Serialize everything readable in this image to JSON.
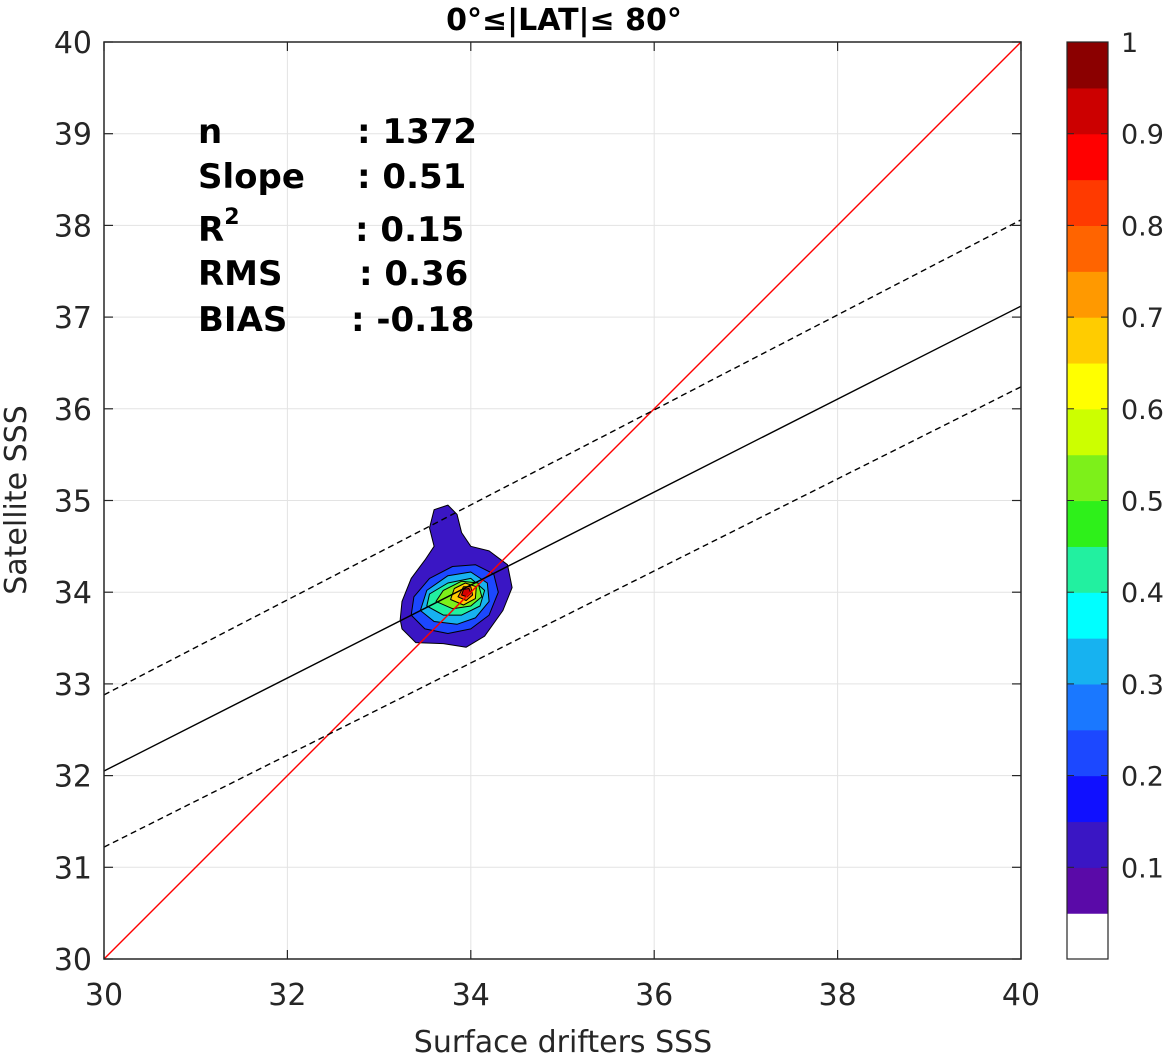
{
  "chart_data": {
    "type": "scatter",
    "subtype": "filled-contour-density",
    "title": "0°≤|LAT|≤ 80°",
    "xlabel": "Surface drifters SSS",
    "ylabel": "Satellite SSS",
    "xlim": [
      30,
      40
    ],
    "ylim": [
      30,
      40
    ],
    "xticks": [
      "30",
      "32",
      "34",
      "36",
      "38",
      "40"
    ],
    "yticks": [
      "30",
      "31",
      "32",
      "33",
      "34",
      "35",
      "36",
      "37",
      "38",
      "39",
      "40"
    ],
    "grid": true,
    "stats": [
      {
        "label": "n",
        "sep": ":",
        "value": "1372"
      },
      {
        "label": "Slope",
        "sep": ":",
        "value": "0.51"
      },
      {
        "label": "R",
        "sup": "2",
        "sep": ":",
        "value": "0.15"
      },
      {
        "label": "RMS",
        "sep": ":",
        "value": "0.36"
      },
      {
        "label": "BIAS",
        "sep": ":",
        "value": "-0.18"
      }
    ],
    "lines": [
      {
        "style": "solid",
        "color": "#ff0000",
        "points": [
          [
            30,
            30
          ],
          [
            40,
            40
          ]
        ]
      },
      {
        "style": "solid",
        "color": "#000000",
        "points": [
          [
            30,
            32.05
          ],
          [
            40,
            37.12
          ]
        ]
      },
      {
        "style": "dashed",
        "color": "#000000",
        "points": [
          [
            30,
            32.88
          ],
          [
            40,
            38.06
          ]
        ]
      },
      {
        "style": "dashed",
        "color": "#000000",
        "points": [
          [
            30,
            31.22
          ],
          [
            40,
            36.24
          ]
        ]
      }
    ],
    "density_peak": {
      "x": 33.95,
      "y": 34.0,
      "value": 1.0
    },
    "contours": [
      {
        "level": 0.05,
        "color": "#3a16c4",
        "points": [
          [
            33.25,
            33.6
          ],
          [
            33.4,
            33.45
          ],
          [
            33.7,
            33.44
          ],
          [
            33.95,
            33.4
          ],
          [
            34.15,
            33.52
          ],
          [
            34.35,
            33.8
          ],
          [
            34.45,
            34.05
          ],
          [
            34.4,
            34.3
          ],
          [
            34.2,
            34.45
          ],
          [
            34.0,
            34.5
          ],
          [
            33.9,
            34.65
          ],
          [
            33.85,
            34.85
          ],
          [
            33.75,
            34.95
          ],
          [
            33.6,
            34.9
          ],
          [
            33.55,
            34.7
          ],
          [
            33.6,
            34.5
          ],
          [
            33.5,
            34.35
          ],
          [
            33.35,
            34.15
          ],
          [
            33.25,
            33.9
          ],
          [
            33.23,
            33.7
          ]
        ]
      },
      {
        "level": 0.2,
        "color": "#1c48ff",
        "points": [
          [
            33.35,
            33.75
          ],
          [
            33.5,
            33.6
          ],
          [
            33.75,
            33.55
          ],
          [
            34.0,
            33.6
          ],
          [
            34.2,
            33.75
          ],
          [
            34.3,
            34.0
          ],
          [
            34.25,
            34.2
          ],
          [
            34.05,
            34.3
          ],
          [
            33.8,
            34.28
          ],
          [
            33.55,
            34.15
          ],
          [
            33.38,
            33.95
          ]
        ]
      },
      {
        "level": 0.3,
        "color": "#17b2f0",
        "points": [
          [
            33.45,
            33.8
          ],
          [
            33.6,
            33.68
          ],
          [
            33.85,
            33.65
          ],
          [
            34.05,
            33.72
          ],
          [
            34.2,
            33.9
          ],
          [
            34.18,
            34.1
          ],
          [
            34.0,
            34.22
          ],
          [
            33.75,
            34.18
          ],
          [
            33.52,
            34.02
          ]
        ]
      },
      {
        "level": 0.4,
        "color": "#22f0a0",
        "points": [
          [
            33.52,
            33.85
          ],
          [
            33.7,
            33.75
          ],
          [
            33.9,
            33.75
          ],
          [
            34.1,
            33.85
          ],
          [
            34.15,
            34.02
          ],
          [
            34.0,
            34.15
          ],
          [
            33.75,
            34.1
          ],
          [
            33.55,
            33.98
          ]
        ]
      },
      {
        "level": 0.5,
        "color": "#7df01a",
        "points": [
          [
            33.62,
            33.9
          ],
          [
            33.8,
            33.82
          ],
          [
            34.0,
            33.85
          ],
          [
            34.12,
            33.95
          ],
          [
            34.08,
            34.1
          ],
          [
            33.9,
            34.12
          ],
          [
            33.7,
            34.02
          ]
        ]
      },
      {
        "level": 0.7,
        "color": "#ffcc00",
        "points": [
          [
            33.78,
            33.92
          ],
          [
            33.92,
            33.86
          ],
          [
            34.05,
            33.93
          ],
          [
            34.06,
            34.06
          ],
          [
            33.94,
            34.1
          ],
          [
            33.82,
            34.04
          ]
        ]
      },
      {
        "level": 0.8,
        "color": "#ff5a00",
        "points": [
          [
            33.86,
            33.95
          ],
          [
            33.95,
            33.91
          ],
          [
            34.02,
            33.97
          ],
          [
            34.0,
            34.06
          ],
          [
            33.92,
            34.06
          ]
        ]
      },
      {
        "level": 0.9,
        "color": "#d40000",
        "points": [
          [
            33.9,
            33.97
          ],
          [
            33.96,
            33.95
          ],
          [
            34.0,
            33.99
          ],
          [
            33.98,
            34.04
          ],
          [
            33.92,
            34.03
          ]
        ]
      }
    ],
    "colorbar": {
      "ticks": [
        "0.1",
        "0.2",
        "0.3",
        "0.4",
        "0.5",
        "0.6",
        "0.7",
        "0.8",
        "0.9",
        "1"
      ],
      "tick_values": [
        0.1,
        0.2,
        0.3,
        0.4,
        0.5,
        0.6,
        0.7,
        0.8,
        0.9,
        1.0
      ],
      "range": [
        0,
        1
      ],
      "colors": [
        "#ffffff",
        "#5a0aa8",
        "#3a16c4",
        "#1010ff",
        "#1c48ff",
        "#1a78ff",
        "#17b2f0",
        "#00ffff",
        "#22f0a0",
        "#2ef01a",
        "#7df01a",
        "#ccff00",
        "#ffff00",
        "#ffcc00",
        "#ff9900",
        "#ff6400",
        "#ff3a00",
        "#ff0000",
        "#cc0000",
        "#8b0000"
      ]
    }
  }
}
